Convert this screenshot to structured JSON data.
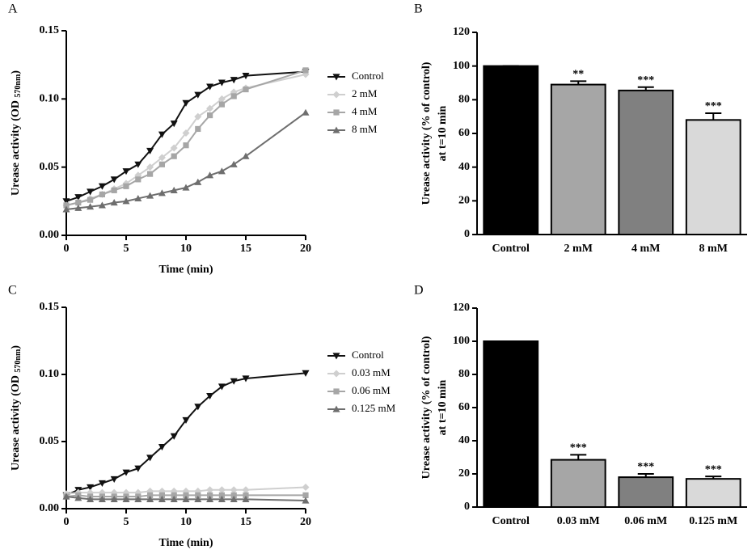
{
  "chart_data": [
    {
      "type": "line",
      "panel": "A",
      "xlabel": "Time (min)",
      "ylabel": [
        "Urease activity (OD ",
        "570nm",
        ")"
      ],
      "x": [
        0,
        1,
        2,
        3,
        4,
        5,
        6,
        7,
        8,
        9,
        10,
        11,
        12,
        13,
        14,
        15,
        20
      ],
      "xlim": [
        0,
        20
      ],
      "xticks": [
        0,
        5,
        10,
        15,
        20
      ],
      "ylim": [
        0,
        0.15
      ],
      "yticks": [
        {
          "value": 0,
          "label": "0.00"
        },
        {
          "value": 0.05,
          "label": "0.05"
        },
        {
          "value": 0.1,
          "label": "0.10"
        },
        {
          "value": 0.15,
          "label": "0.15"
        }
      ],
      "series": [
        {
          "name": "Control",
          "color": "#111111",
          "marker": "tri-down",
          "values": [
            0.025,
            0.028,
            0.032,
            0.036,
            0.041,
            0.047,
            0.052,
            0.062,
            0.074,
            0.082,
            0.097,
            0.103,
            0.109,
            0.112,
            0.114,
            0.117,
            0.12
          ]
        },
        {
          "name": "2 mM",
          "color": "#cfcfcf",
          "marker": "diamond",
          "values": [
            0.022,
            0.024,
            0.027,
            0.03,
            0.034,
            0.038,
            0.044,
            0.05,
            0.057,
            0.064,
            0.075,
            0.087,
            0.093,
            0.1,
            0.105,
            0.108,
            0.118
          ]
        },
        {
          "name": "4 mM",
          "color": "#a6a6a6",
          "marker": "square",
          "values": [
            0.022,
            0.024,
            0.026,
            0.03,
            0.033,
            0.036,
            0.041,
            0.045,
            0.052,
            0.058,
            0.066,
            0.078,
            0.088,
            0.096,
            0.102,
            0.107,
            0.121
          ]
        },
        {
          "name": "8 mM",
          "color": "#6e6e6e",
          "marker": "tri-up",
          "values": [
            0.019,
            0.02,
            0.021,
            0.022,
            0.024,
            0.025,
            0.027,
            0.029,
            0.031,
            0.033,
            0.035,
            0.039,
            0.044,
            0.047,
            0.052,
            0.058,
            0.09
          ]
        }
      ]
    },
    {
      "type": "bar",
      "panel": "B",
      "ylabel": [
        "Urease activity (% of control)",
        "at t=10 min"
      ],
      "categories": [
        "Control",
        "2 mM",
        "4 mM",
        "8 mM"
      ],
      "values": [
        100,
        89,
        85.5,
        68
      ],
      "errors": [
        0,
        2,
        2,
        4
      ],
      "colors": [
        "#000000",
        "#a6a6a6",
        "#808080",
        "#d9d9d9"
      ],
      "annotations": [
        null,
        "**",
        "***",
        "***"
      ],
      "ylim": [
        0,
        120
      ],
      "yticks": [
        0,
        20,
        40,
        60,
        80,
        100,
        120
      ]
    },
    {
      "type": "line",
      "panel": "C",
      "xlabel": "Time (min)",
      "ylabel": [
        "Urease activity (OD ",
        "570nm",
        ")"
      ],
      "x": [
        0,
        1,
        2,
        3,
        4,
        5,
        6,
        7,
        8,
        9,
        10,
        11,
        12,
        13,
        14,
        15,
        20
      ],
      "xlim": [
        0,
        20
      ],
      "xticks": [
        0,
        5,
        10,
        15,
        20
      ],
      "ylim": [
        0,
        0.15
      ],
      "yticks": [
        {
          "value": 0,
          "label": "0.00"
        },
        {
          "value": 0.05,
          "label": "0.05"
        },
        {
          "value": 0.1,
          "label": "0.10"
        },
        {
          "value": 0.15,
          "label": "0.15"
        }
      ],
      "series": [
        {
          "name": "Control",
          "color": "#111111",
          "marker": "tri-down",
          "values": [
            0.01,
            0.014,
            0.016,
            0.019,
            0.022,
            0.027,
            0.03,
            0.038,
            0.046,
            0.054,
            0.066,
            0.076,
            0.084,
            0.091,
            0.095,
            0.097,
            0.101
          ]
        },
        {
          "name": "0.03 mM",
          "color": "#cfcfcf",
          "marker": "diamond",
          "values": [
            0.011,
            0.012,
            0.012,
            0.012,
            0.012,
            0.012,
            0.012,
            0.013,
            0.013,
            0.013,
            0.013,
            0.013,
            0.014,
            0.014,
            0.014,
            0.014,
            0.016
          ]
        },
        {
          "name": "0.06 mM",
          "color": "#a6a6a6",
          "marker": "square",
          "values": [
            0.009,
            0.01,
            0.009,
            0.009,
            0.009,
            0.009,
            0.009,
            0.01,
            0.01,
            0.01,
            0.01,
            0.01,
            0.01,
            0.01,
            0.01,
            0.01,
            0.01
          ]
        },
        {
          "name": "0.125 mM",
          "color": "#6e6e6e",
          "marker": "tri-up",
          "values": [
            0.009,
            0.008,
            0.007,
            0.007,
            0.007,
            0.007,
            0.007,
            0.007,
            0.007,
            0.007,
            0.007,
            0.007,
            0.007,
            0.007,
            0.007,
            0.007,
            0.006
          ]
        }
      ]
    },
    {
      "type": "bar",
      "panel": "D",
      "ylabel": [
        "Urease activity (% of control)",
        "at t=10 min"
      ],
      "categories": [
        "Control",
        "0.03 mM",
        "0.06 mM",
        "0.125 mM"
      ],
      "values": [
        100,
        28.5,
        18,
        17
      ],
      "errors": [
        0,
        3,
        2,
        1.5
      ],
      "colors": [
        "#000000",
        "#a6a6a6",
        "#808080",
        "#d9d9d9"
      ],
      "annotations": [
        null,
        "***",
        "***",
        "***"
      ],
      "ylim": [
        0,
        120
      ],
      "yticks": [
        0,
        20,
        40,
        60,
        80,
        100,
        120
      ]
    }
  ]
}
